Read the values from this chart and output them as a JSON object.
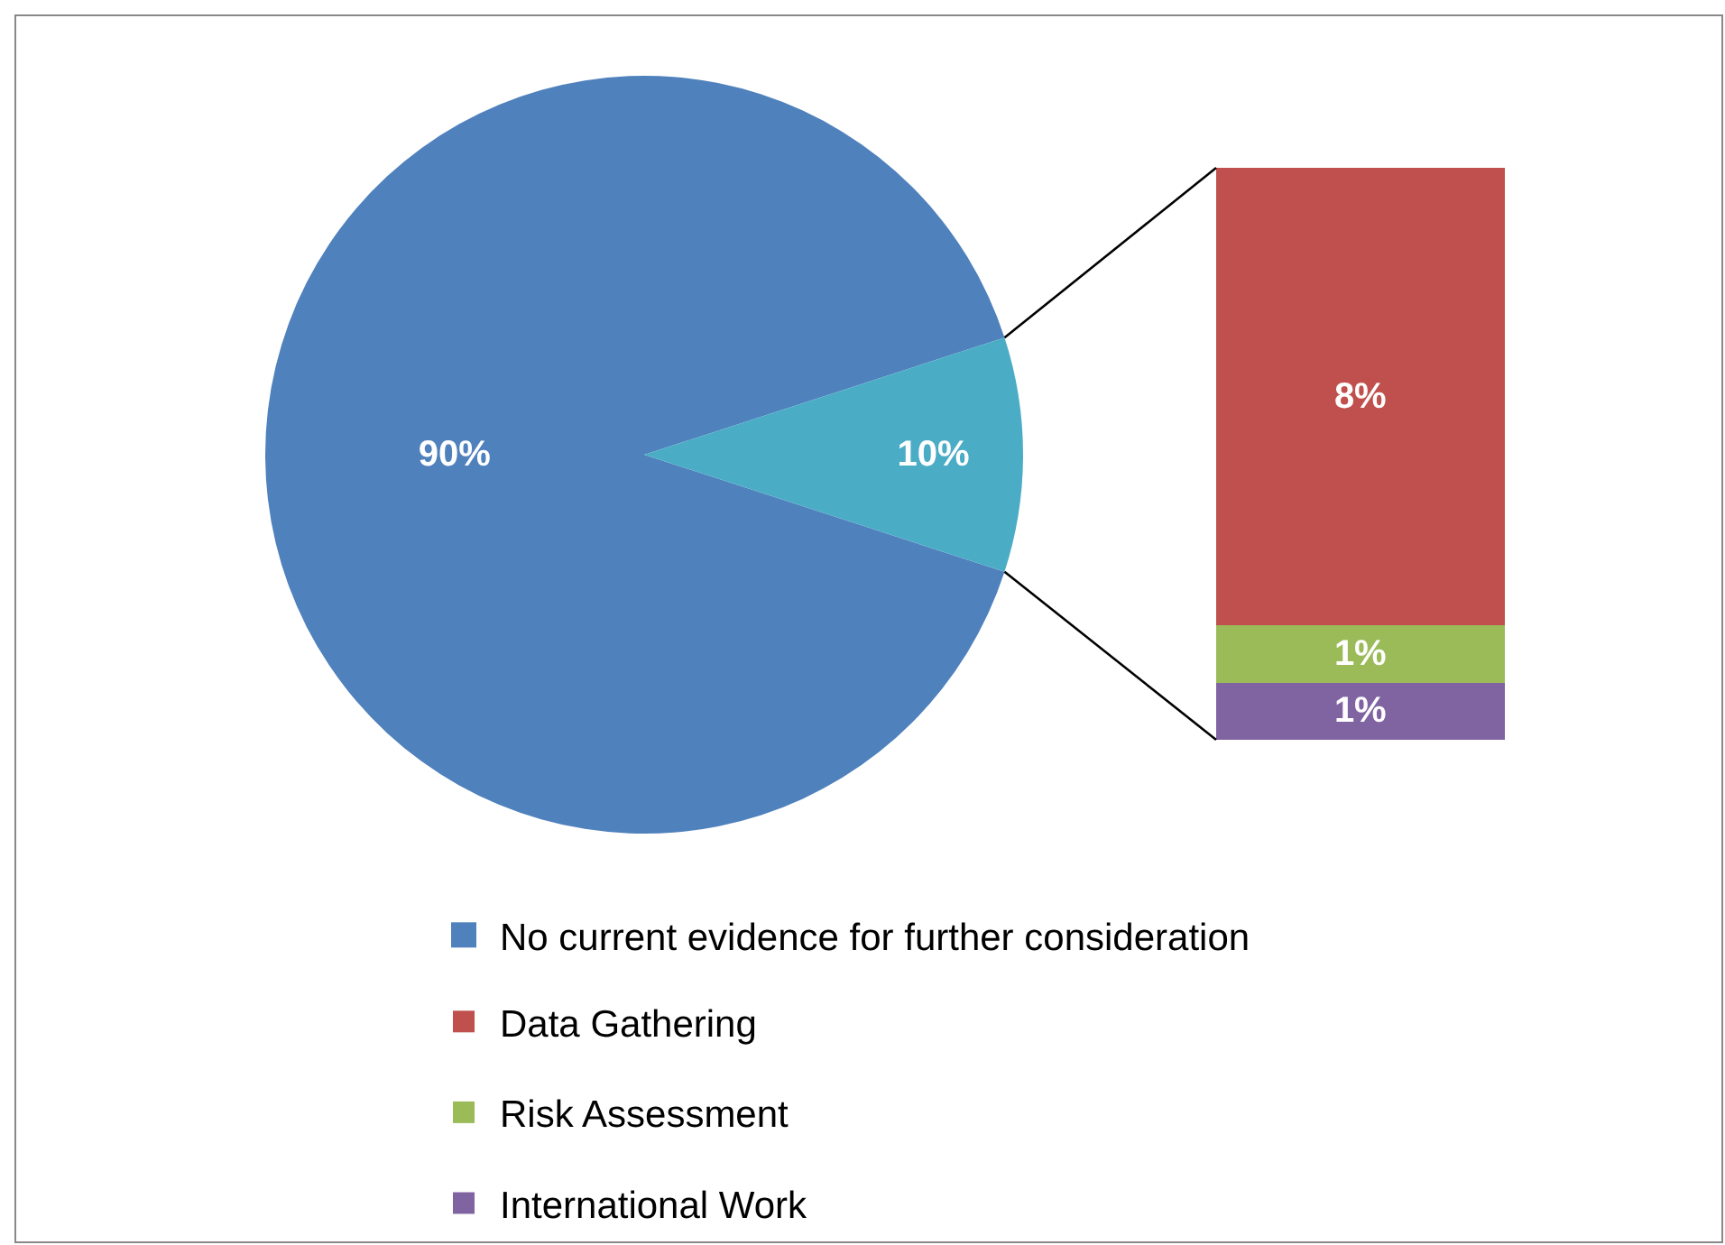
{
  "chart_data": [
    {
      "type": "pie",
      "categories": [
        "No current evidence for further consideration",
        null
      ],
      "values": [
        90,
        10
      ],
      "colors": [
        "#4f81bd",
        "#4bacc6"
      ],
      "value_labels": [
        "90%",
        "10%"
      ],
      "legend": "bottom"
    },
    {
      "type": "bar",
      "stacked": true,
      "categories": [
        null
      ],
      "legend": "bottom",
      "series": [
        {
          "name": "International Work",
          "color": "#8064a2",
          "values": [
            1
          ],
          "value_labels": [
            "1%"
          ]
        },
        {
          "name": "Risk Assessment",
          "color": "#9bbb59",
          "values": [
            1
          ],
          "value_labels": [
            "1%"
          ]
        },
        {
          "name": "Data Gathering",
          "color": "#c0504d",
          "values": [
            8
          ],
          "value_labels": [
            "8%"
          ]
        }
      ]
    }
  ]
}
